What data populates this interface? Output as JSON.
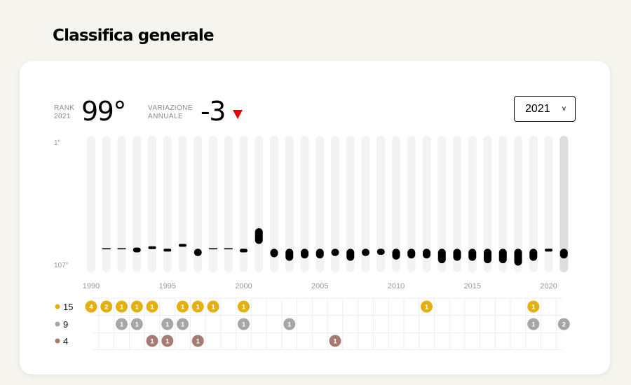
{
  "page": {
    "title": "Classifica generale"
  },
  "stats": {
    "rank_label_1": "RANK",
    "rank_label_2": "2021",
    "rank_value": "99°",
    "variation_label_1": "VARIAZIONE",
    "variation_label_2": "ANNUALE",
    "variation_value": "-3"
  },
  "year_select": {
    "value": "2021",
    "chevron": "v"
  },
  "colors": {
    "track": "#f3f3f3",
    "track_selected": "#dedede",
    "mark": "#000000",
    "gold": "#e3b00f",
    "silver": "#a6a6a6",
    "bronze": "#a67b72",
    "arrow": "#e60000"
  },
  "chart_data": {
    "type": "bar",
    "y_tick_labels": [
      "1°",
      "107°"
    ],
    "x_tick_labels": [
      "1990",
      "1995",
      "2000",
      "2005",
      "2010",
      "2015",
      "2020"
    ],
    "x_tick_years": [
      1990,
      1995,
      2000,
      2005,
      2010,
      2015,
      2020
    ],
    "ylim": [
      1,
      107
    ],
    "selected_year": 2021,
    "rank_series": [
      {
        "year": 1990,
        "min": null,
        "max": null
      },
      {
        "year": 1991,
        "min": 91,
        "max": 91
      },
      {
        "year": 1992,
        "min": 91,
        "max": 91
      },
      {
        "year": 1993,
        "min": 90,
        "max": 94
      },
      {
        "year": 1994,
        "min": 89,
        "max": 90
      },
      {
        "year": 1995,
        "min": 91,
        "max": 93
      },
      {
        "year": 1996,
        "min": 87,
        "max": 89
      },
      {
        "year": 1997,
        "min": 91,
        "max": 97
      },
      {
        "year": 1998,
        "min": 91,
        "max": 91
      },
      {
        "year": 1999,
        "min": 91,
        "max": 91
      },
      {
        "year": 2000,
        "min": 91,
        "max": 94
      },
      {
        "year": 2001,
        "min": 74,
        "max": 87
      },
      {
        "year": 2002,
        "min": 91,
        "max": 98
      },
      {
        "year": 2003,
        "min": 91,
        "max": 101
      },
      {
        "year": 2004,
        "min": 91,
        "max": 99
      },
      {
        "year": 2005,
        "min": 91,
        "max": 99
      },
      {
        "year": 2006,
        "min": 91,
        "max": 97
      },
      {
        "year": 2007,
        "min": 91,
        "max": 101
      },
      {
        "year": 2008,
        "min": 91,
        "max": 97
      },
      {
        "year": 2009,
        "min": 91,
        "max": 96
      },
      {
        "year": 2010,
        "min": 91,
        "max": 100
      },
      {
        "year": 2011,
        "min": 91,
        "max": 99
      },
      {
        "year": 2012,
        "min": 91,
        "max": 99
      },
      {
        "year": 2013,
        "min": 91,
        "max": 103
      },
      {
        "year": 2014,
        "min": 91,
        "max": 101
      },
      {
        "year": 2015,
        "min": 91,
        "max": 101
      },
      {
        "year": 2016,
        "min": 91,
        "max": 103
      },
      {
        "year": 2017,
        "min": 91,
        "max": 103
      },
      {
        "year": 2018,
        "min": 91,
        "max": 105
      },
      {
        "year": 2019,
        "min": 91,
        "max": 101
      },
      {
        "year": 2020,
        "min": 91,
        "max": 92
      },
      {
        "year": 2021,
        "min": 91,
        "max": 99
      }
    ],
    "medal_rows": [
      {
        "key": "gold",
        "total": "15",
        "entries": [
          {
            "year": 1990,
            "count": "4"
          },
          {
            "year": 1991,
            "count": "2"
          },
          {
            "year": 1992,
            "count": "1"
          },
          {
            "year": 1993,
            "count": "1"
          },
          {
            "year": 1994,
            "count": "1"
          },
          {
            "year": 1996,
            "count": "1"
          },
          {
            "year": 1997,
            "count": "1"
          },
          {
            "year": 1998,
            "count": "1"
          },
          {
            "year": 2000,
            "count": "1"
          },
          {
            "year": 2012,
            "count": "1"
          },
          {
            "year": 2019,
            "count": "1"
          }
        ]
      },
      {
        "key": "silver",
        "total": "9",
        "entries": [
          {
            "year": 1992,
            "count": "1"
          },
          {
            "year": 1993,
            "count": "1"
          },
          {
            "year": 1995,
            "count": "1"
          },
          {
            "year": 1996,
            "count": "1"
          },
          {
            "year": 2000,
            "count": "1"
          },
          {
            "year": 2003,
            "count": "1"
          },
          {
            "year": 2019,
            "count": "1"
          },
          {
            "year": 2021,
            "count": "2"
          }
        ]
      },
      {
        "key": "bronze",
        "total": "4",
        "entries": [
          {
            "year": 1994,
            "count": "1"
          },
          {
            "year": 1995,
            "count": "1"
          },
          {
            "year": 1997,
            "count": "1"
          },
          {
            "year": 2006,
            "count": "1"
          }
        ]
      }
    ]
  }
}
